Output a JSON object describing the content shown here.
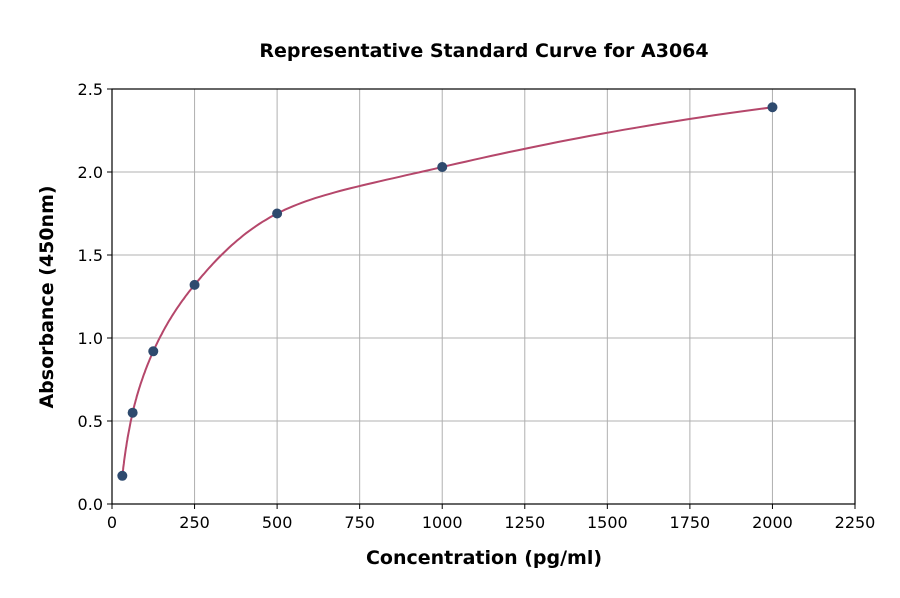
{
  "chart_data": {
    "type": "scatter",
    "title": "Representative Standard Curve for A3064",
    "xlabel": "Concentration (pg/ml)",
    "ylabel": "Absorbance (450nm)",
    "xlim": [
      0,
      2250
    ],
    "ylim": [
      0,
      2.5
    ],
    "xticks": [
      0,
      250,
      500,
      750,
      1000,
      1250,
      1500,
      1750,
      2000,
      2250
    ],
    "yticks": [
      "0.0",
      "0.5",
      "1.0",
      "1.5",
      "2.0",
      "2.5"
    ],
    "grid": true,
    "series": [
      {
        "x": [
          31.25,
          62.5,
          125,
          250,
          500,
          1000,
          2000
        ],
        "y": [
          0.17,
          0.55,
          0.92,
          1.32,
          1.75,
          2.03,
          2.39
        ],
        "marker_color": "#2e4a6e",
        "curve_color": "#b5476b",
        "fit": "smooth standard curve"
      }
    ]
  }
}
